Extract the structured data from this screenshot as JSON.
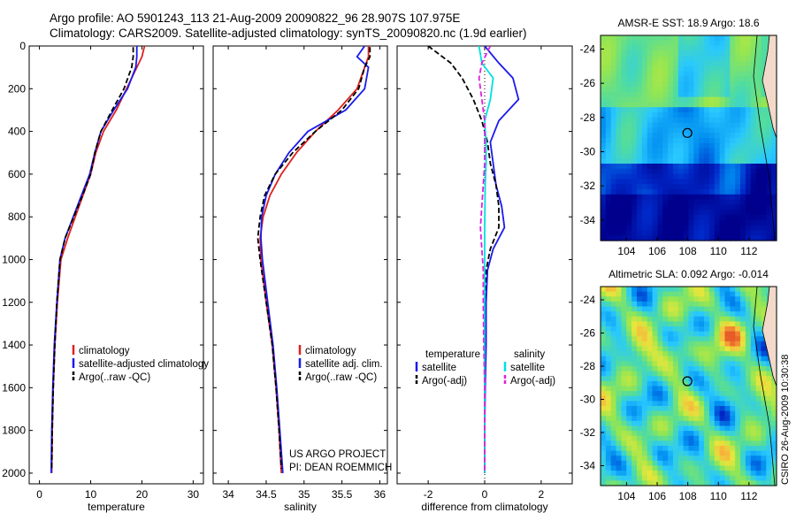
{
  "header": {
    "line1": "Argo profile: AO 5901243_113 21-Aug-2009 20090822_96 28.907S 107.975E",
    "line2": "Climatology: CARS2009. Satellite-adjusted climatology: synTS_20090820.nc (1.9d earlier)"
  },
  "side_note": "CSIRO 26-Aug-2009 10:30:38",
  "colors": {
    "climatology": "#e02020",
    "satellite": "#1a1aee",
    "argo": "#000000",
    "salinity_sat": "#00e0e0",
    "salinity_argo": "#e020e0"
  },
  "chart_data": [
    {
      "type": "line",
      "xlabel": "temperature",
      "xlim": [
        -2,
        32
      ],
      "xticks": [
        0,
        10,
        20,
        30
      ],
      "ylim": [
        2050,
        0
      ],
      "yticks": [
        0,
        200,
        400,
        600,
        800,
        1000,
        1200,
        1400,
        1600,
        1800,
        2000
      ],
      "legend": [
        "climatology",
        "satellite-adjusted climatology",
        "Argo(..raw -QC)"
      ],
      "legend_placement": "lower-right",
      "series": [
        {
          "name": "climatology",
          "color": "#e02020",
          "dash": "",
          "x": [
            20.5,
            20.0,
            19.0,
            17.0,
            15.0,
            12.5,
            11.0,
            10.0,
            8.5,
            7.0,
            5.5,
            4.2,
            3.5,
            3.0,
            2.7,
            2.5,
            2.4
          ],
          "y": [
            0,
            50,
            100,
            200,
            300,
            400,
            500,
            600,
            700,
            800,
            900,
            1000,
            1200,
            1400,
            1600,
            1800,
            2000
          ]
        },
        {
          "name": "satellite-adjusted climatology",
          "color": "#1a1aee",
          "dash": "",
          "x": [
            19.0,
            19.0,
            18.8,
            17.2,
            14.5,
            12.0,
            10.8,
            9.8,
            8.2,
            6.6,
            5.0,
            4.0,
            3.4,
            2.9,
            2.6,
            2.4,
            2.3
          ],
          "y": [
            0,
            50,
            100,
            200,
            300,
            400,
            500,
            600,
            700,
            800,
            900,
            1000,
            1200,
            1400,
            1600,
            1800,
            2000
          ]
        },
        {
          "name": "Argo(..raw -QC)",
          "color": "#000000",
          "dash": "6,3",
          "x": [
            18.3,
            18.3,
            18.0,
            16.5,
            14.2,
            12.0,
            10.8,
            10.0,
            8.4,
            6.7,
            5.0,
            4.0,
            3.4,
            3.0,
            2.7,
            2.5,
            2.4
          ],
          "y": [
            5,
            50,
            100,
            200,
            300,
            400,
            500,
            600,
            700,
            800,
            900,
            1000,
            1200,
            1400,
            1600,
            1800,
            1980
          ]
        }
      ]
    },
    {
      "type": "line",
      "xlabel": "salinity",
      "xlim": [
        33.8,
        36.1
      ],
      "xticks": [
        34,
        34.5,
        35,
        35.5,
        36
      ],
      "ylim": [
        2050,
        0
      ],
      "legend": [
        "climatology",
        "satellite adj. clim.",
        "Argo(..raw -QC)"
      ],
      "legend_placement": "lower-right",
      "annotation": [
        "US ARGO PROJECT",
        "PI: DEAN ROEMMICH"
      ],
      "series": [
        {
          "name": "climatology",
          "color": "#e02020",
          "dash": "",
          "x": [
            35.85,
            35.85,
            35.8,
            35.7,
            35.45,
            35.15,
            34.9,
            34.7,
            34.55,
            34.46,
            34.42,
            34.43,
            34.5,
            34.58,
            34.63,
            34.67,
            34.7
          ],
          "y": [
            0,
            50,
            100,
            200,
            300,
            400,
            500,
            600,
            700,
            800,
            900,
            1000,
            1200,
            1400,
            1600,
            1800,
            2000
          ]
        },
        {
          "name": "satellite adj. clim.",
          "color": "#1a1aee",
          "dash": "",
          "x": [
            35.8,
            35.7,
            35.85,
            35.8,
            35.55,
            35.05,
            34.8,
            34.62,
            34.5,
            34.44,
            34.43,
            34.45,
            34.52,
            34.59,
            34.64,
            34.68,
            34.72
          ],
          "y": [
            0,
            50,
            100,
            200,
            300,
            400,
            500,
            600,
            700,
            800,
            900,
            1000,
            1200,
            1400,
            1600,
            1800,
            2000
          ]
        },
        {
          "name": "Argo(..raw -QC)",
          "color": "#000000",
          "dash": "6,3",
          "x": [
            35.87,
            35.87,
            35.8,
            35.72,
            35.5,
            35.15,
            34.85,
            34.62,
            34.48,
            34.42,
            34.39,
            34.42,
            34.5,
            34.58,
            34.63,
            34.67,
            34.7
          ],
          "y": [
            5,
            50,
            100,
            200,
            300,
            400,
            500,
            600,
            700,
            800,
            900,
            1000,
            1200,
            1400,
            1600,
            1800,
            1980
          ]
        }
      ]
    },
    {
      "type": "line",
      "xlabel": "difference from climatology",
      "xlim": [
        -3.1,
        3.1
      ],
      "xticks": [
        -2,
        0,
        2
      ],
      "ylim": [
        2050,
        0
      ],
      "legend_temperature": [
        "temperature",
        "satellite",
        "Argo(-adj)"
      ],
      "legend_salinity": [
        "salinity",
        "satellite",
        "Argo(-adj)"
      ],
      "legend_placement": "lower",
      "series": [
        {
          "name": "satellite",
          "color": "#1a1aee",
          "dash": "",
          "x": [
            0.0,
            0.5,
            1.0,
            1.2,
            0.5,
            0.2,
            0.3,
            0.4,
            0.6,
            0.7,
            0.3,
            0.1,
            0.05,
            0.05,
            0.02,
            0.0,
            0.0
          ],
          "y": [
            0,
            80,
            150,
            250,
            350,
            450,
            550,
            650,
            750,
            850,
            950,
            1050,
            1200,
            1400,
            1600,
            1800,
            2000
          ]
        },
        {
          "name": "Argo(-adj)",
          "color": "#000000",
          "dash": "6,3",
          "x": [
            -2.0,
            -1.2,
            -0.8,
            -0.4,
            -0.1,
            0.1,
            0.2,
            0.4,
            0.5,
            0.5,
            0.2,
            0.05,
            0.0,
            0.0,
            0.0,
            0.0,
            0.0
          ],
          "y": [
            0,
            80,
            150,
            250,
            350,
            450,
            550,
            650,
            750,
            850,
            950,
            1050,
            1200,
            1400,
            1600,
            1800,
            2000
          ]
        },
        {
          "name": "satellite",
          "color": "#00e0e0",
          "dash": "",
          "x": [
            -0.2,
            -0.1,
            0.3,
            0.2,
            0.0,
            0.05,
            0.05,
            0.02,
            0.01,
            0.0,
            0.0,
            0.0,
            0.0,
            0.0,
            0.0,
            0.0,
            0.0
          ],
          "y": [
            0,
            80,
            150,
            250,
            350,
            450,
            550,
            650,
            750,
            850,
            950,
            1050,
            1200,
            1400,
            1600,
            1800,
            2000
          ]
        },
        {
          "name": "Argo(-adj)",
          "color": "#e020e0",
          "dash": "6,3",
          "x": [
            0.2,
            -0.1,
            -0.2,
            -0.1,
            0.0,
            0.0,
            0.0,
            -0.05,
            -0.1,
            -0.15,
            -0.1,
            -0.05,
            -0.05,
            -0.03,
            0.0,
            0.0,
            0.0
          ],
          "y": [
            0,
            80,
            150,
            250,
            350,
            450,
            550,
            650,
            750,
            850,
            950,
            1050,
            1200,
            1400,
            1600,
            1800,
            2000
          ]
        }
      ]
    },
    {
      "type": "heatmap",
      "title": "AMSR-E SST: 18.9 Argo: 18.6",
      "xlim": [
        102.3,
        113.8
      ],
      "ylim": [
        -35.2,
        -23.2
      ],
      "xticks": [
        104,
        106,
        108,
        110,
        112
      ],
      "yticks": [
        -24,
        -26,
        -28,
        -30,
        -32,
        -34
      ],
      "marker": {
        "lon": 107.975,
        "lat": -28.907
      }
    },
    {
      "type": "heatmap",
      "title": "Altimetric SLA: 0.092 Argo: -0.014",
      "xlim": [
        102.3,
        113.8
      ],
      "ylim": [
        -35.2,
        -23.2
      ],
      "xticks": [
        104,
        106,
        108,
        110,
        112
      ],
      "yticks": [
        -24,
        -26,
        -28,
        -30,
        -32,
        -34
      ],
      "marker": {
        "lon": 107.975,
        "lat": -28.907
      }
    }
  ]
}
